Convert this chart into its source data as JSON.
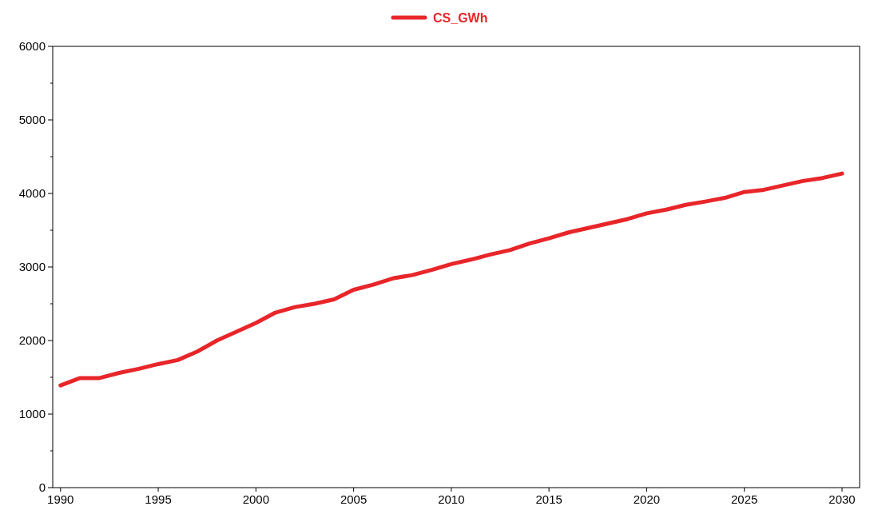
{
  "chart_data": {
    "type": "line",
    "x": [
      1990,
      1991,
      1992,
      1993,
      1994,
      1995,
      1996,
      1997,
      1998,
      1999,
      2000,
      2001,
      2002,
      2003,
      2004,
      2005,
      2006,
      2007,
      2008,
      2009,
      2010,
      2011,
      2012,
      2013,
      2014,
      2015,
      2016,
      2017,
      2018,
      2019,
      2020,
      2021,
      2022,
      2023,
      2024,
      2025,
      2026,
      2027,
      2028,
      2029,
      2030
    ],
    "series": [
      {
        "name": "CS_GWh",
        "color": "#e8262a",
        "values": [
          1390,
          1490,
          1490,
          1560,
          1615,
          1680,
          1735,
          1850,
          2000,
          2120,
          2240,
          2380,
          2455,
          2500,
          2560,
          2690,
          2760,
          2845,
          2890,
          2960,
          3040,
          3100,
          3170,
          3230,
          3320,
          3390,
          3470,
          3530,
          3590,
          3650,
          3730,
          3780,
          3845,
          3890,
          3940,
          4020,
          4050,
          4110,
          4170,
          4210,
          4270
        ]
      }
    ],
    "xlim": [
      1989.6,
      2030.9
    ],
    "xticks": [
      1990,
      1995,
      2000,
      2005,
      2010,
      2015,
      2020,
      2025,
      2030
    ],
    "ylim": [
      0,
      6000
    ],
    "yticks": [
      0,
      {
        "value": 500,
        "label": null
      },
      1000,
      {
        "value": 1500,
        "label": null
      },
      2000,
      {
        "value": 2500,
        "label": null
      },
      3000,
      {
        "value": 3500,
        "label": null
      },
      4000,
      {
        "value": 4500,
        "label": null
      },
      5000,
      {
        "value": 5500,
        "label": null
      },
      6000
    ],
    "legend": "top",
    "grid": false,
    "marker": "none",
    "line_style": "solid"
  }
}
